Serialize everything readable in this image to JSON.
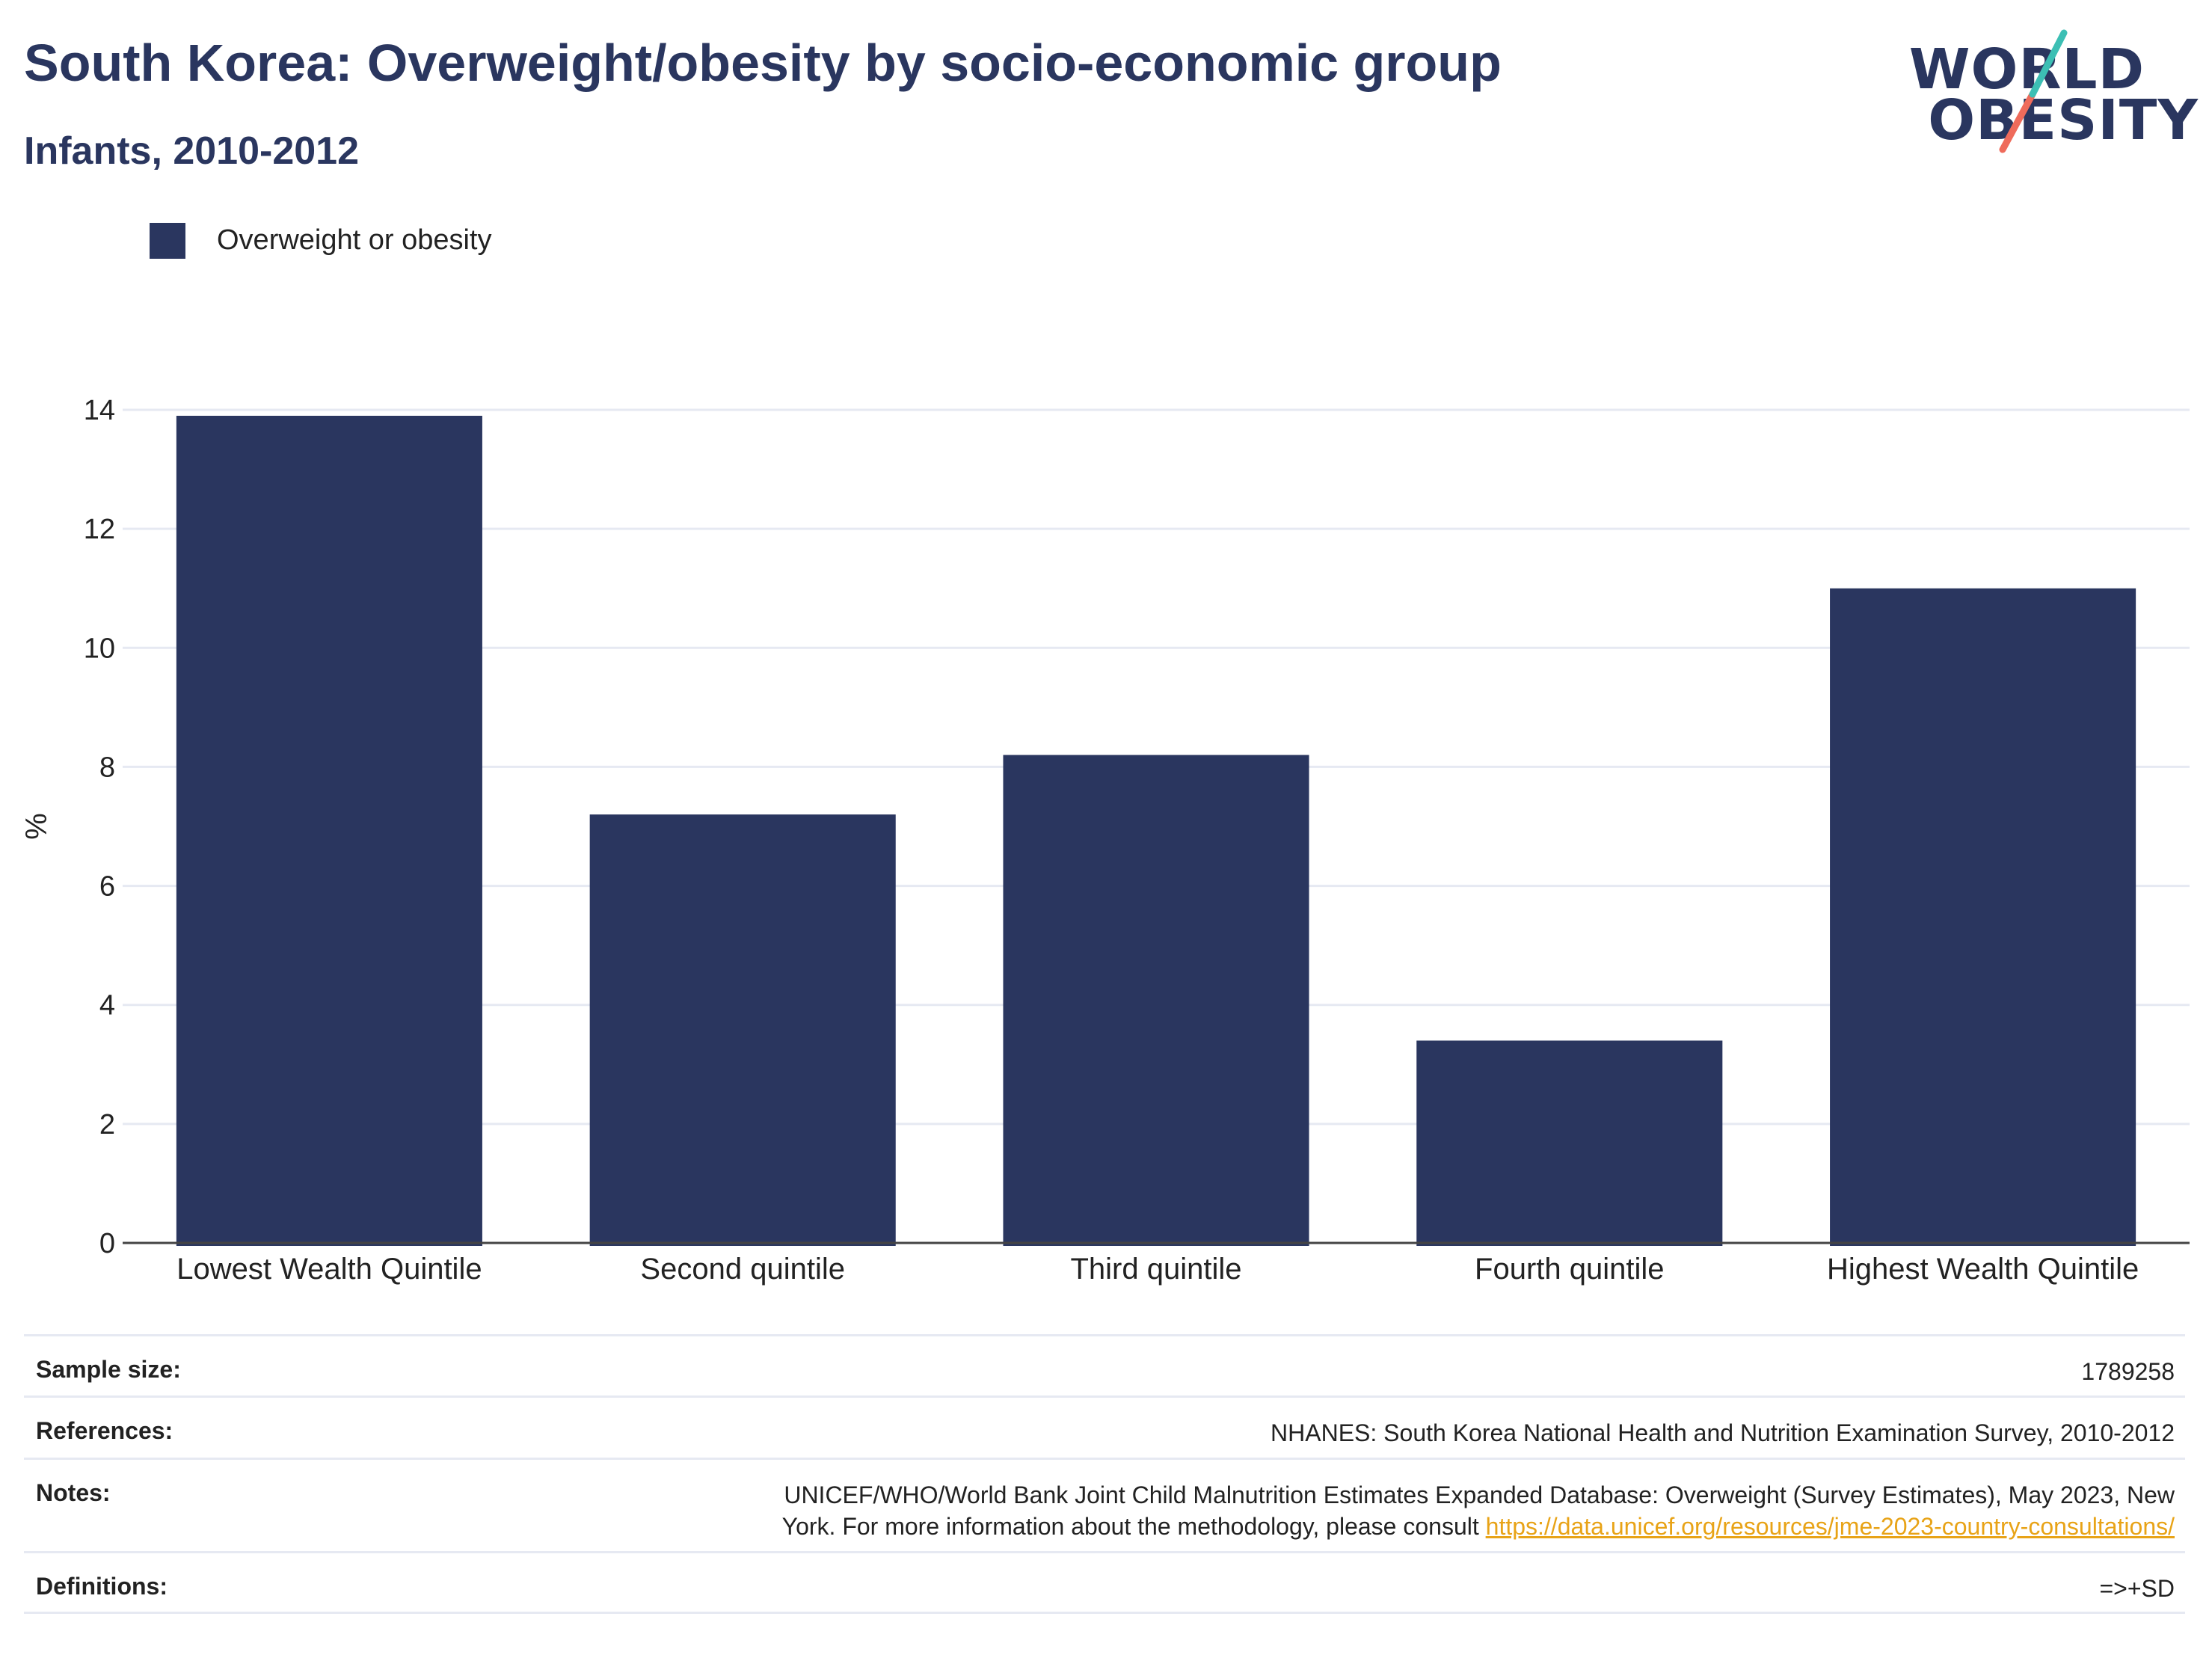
{
  "header": {
    "title": "South Korea: Overweight/obesity by socio-economic group",
    "subtitle": "Infants, 2010-2012"
  },
  "logo": {
    "line1": "WORLD",
    "line2": "OBESITY"
  },
  "colors": {
    "bar": "#2a365f",
    "title": "#2a365f",
    "grid": "#e6e9f2",
    "link": "#e8a317",
    "logo_teal": "#3cbfb4",
    "logo_coral": "#ef6b5b"
  },
  "chart_data": {
    "type": "bar",
    "categories": [
      "Lowest Wealth Quintile",
      "Second quintile",
      "Third quintile",
      "Fourth quintile",
      "Highest Wealth Quintile"
    ],
    "series": [
      {
        "name": "Overweight or obesity",
        "values": [
          13.9,
          7.2,
          8.2,
          3.4,
          11.0
        ]
      }
    ],
    "title": "South Korea: Overweight/obesity by socio-economic group",
    "subtitle": "Infants, 2010-2012",
    "xlabel": "",
    "ylabel": "%",
    "ylim": [
      0,
      14
    ],
    "yticks": [
      0,
      2,
      4,
      6,
      8,
      10,
      12,
      14
    ],
    "grid": true,
    "legend": "top-left"
  },
  "info": {
    "sample_size": {
      "label": "Sample size:",
      "value": "1789258"
    },
    "references": {
      "label": "References:",
      "value": "NHANES: South Korea National Health and Nutrition Examination Survey, 2010-2012"
    },
    "notes": {
      "label": "Notes:",
      "line1": "UNICEF/WHO/World Bank Joint Child Malnutrition Estimates Expanded Database: Overweight (Survey Estimates), May 2023, New",
      "line2": "York. For more information about the methodology, please consult ",
      "link": "https://data.unicef.org/resources/jme-2023-country-consultations/"
    },
    "definitions": {
      "label": "Definitions:",
      "value": "=>+SD"
    }
  }
}
